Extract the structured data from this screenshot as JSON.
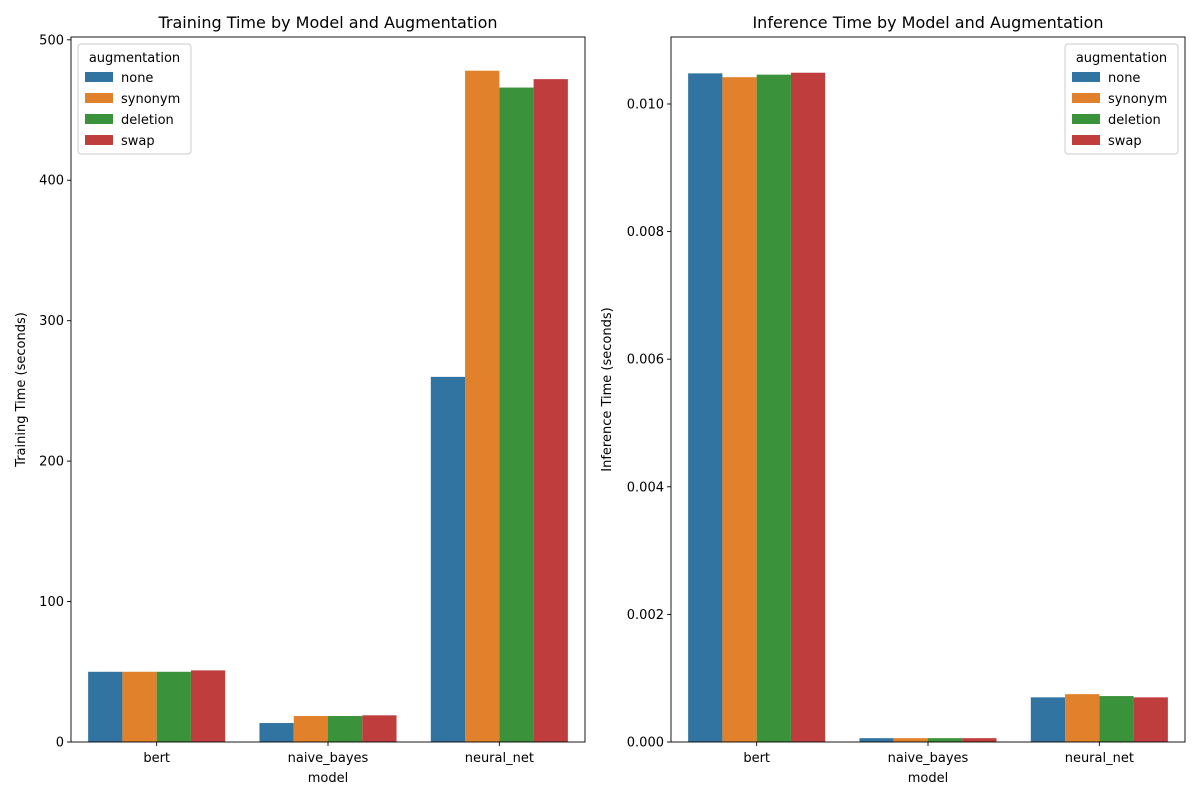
{
  "chart_data": [
    {
      "type": "bar",
      "title": "Training Time by Model and Augmentation",
      "xlabel": "model",
      "ylabel": "Training Time (seconds)",
      "categories": [
        "bert",
        "naive_bayes",
        "neural_net"
      ],
      "ylim": [
        0,
        502
      ],
      "yticks": [
        0,
        100,
        200,
        300,
        400,
        500
      ],
      "ytick_labels": [
        "0",
        "100",
        "200",
        "300",
        "400",
        "500"
      ],
      "legend": {
        "title": "augmentation",
        "position": "upper-left"
      },
      "series": [
        {
          "name": "none",
          "color": "#3274a1",
          "values": [
            50,
            13.5,
            260
          ]
        },
        {
          "name": "synonym",
          "color": "#e1812c",
          "values": [
            50,
            18.5,
            478
          ]
        },
        {
          "name": "deletion",
          "color": "#3a923a",
          "values": [
            50,
            18.5,
            466
          ]
        },
        {
          "name": "swap",
          "color": "#c03d3e",
          "values": [
            51,
            19,
            472
          ]
        }
      ]
    },
    {
      "type": "bar",
      "title": "Inference Time by Model and Augmentation",
      "xlabel": "model",
      "ylabel": "Inference Time (seconds)",
      "categories": [
        "bert",
        "naive_bayes",
        "neural_net"
      ],
      "ylim": [
        0,
        0.01105
      ],
      "yticks": [
        0,
        0.002,
        0.004,
        0.006,
        0.008,
        0.01
      ],
      "ytick_labels": [
        "0.000",
        "0.002",
        "0.004",
        "0.006",
        "0.008",
        "0.010"
      ],
      "legend": {
        "title": "augmentation",
        "position": "upper-right"
      },
      "series": [
        {
          "name": "none",
          "color": "#3274a1",
          "values": [
            0.01048,
            6e-05,
            0.0007
          ]
        },
        {
          "name": "synonym",
          "color": "#e1812c",
          "values": [
            0.01042,
            6e-05,
            0.00075
          ]
        },
        {
          "name": "deletion",
          "color": "#3a923a",
          "values": [
            0.01046,
            6e-05,
            0.00072
          ]
        },
        {
          "name": "swap",
          "color": "#c03d3e",
          "values": [
            0.01049,
            6e-05,
            0.0007
          ]
        }
      ]
    }
  ]
}
